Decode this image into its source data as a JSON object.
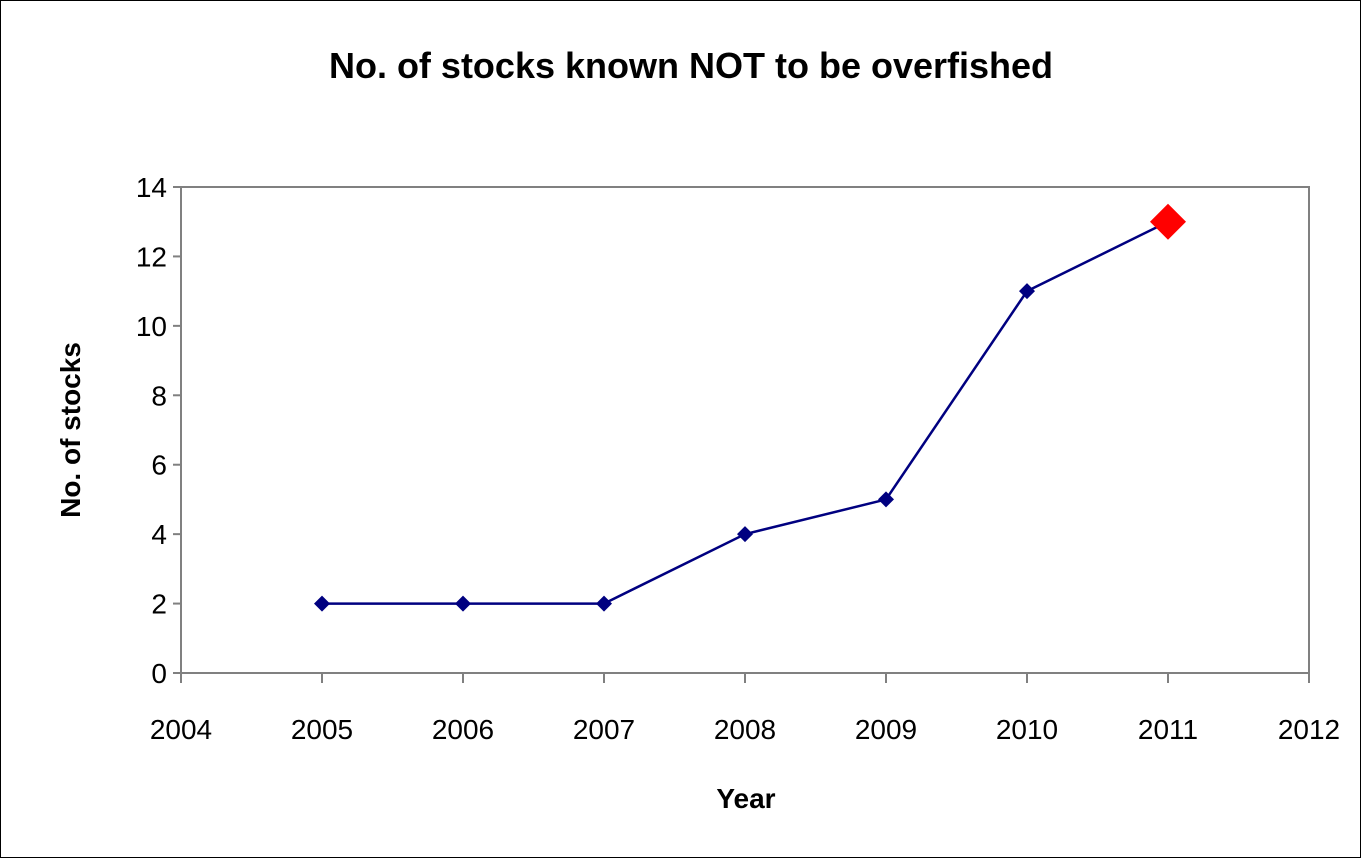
{
  "chart_data": {
    "type": "line",
    "title": "No. of stocks known NOT to be overfished",
    "xlabel": "Year",
    "ylabel": "No. of stocks",
    "xlim": [
      2004,
      2012
    ],
    "ylim": [
      0,
      14
    ],
    "x_ticks": [
      2004,
      2005,
      2006,
      2007,
      2008,
      2009,
      2010,
      2011,
      2012
    ],
    "y_ticks": [
      0,
      2,
      4,
      6,
      8,
      10,
      12,
      14
    ],
    "grid": false,
    "legend": "none",
    "series": [
      {
        "x": [
          2005,
          2006,
          2007,
          2008,
          2009,
          2010,
          2011
        ],
        "y": [
          2,
          2,
          2,
          4,
          5,
          11,
          13
        ],
        "color": "#000080"
      }
    ],
    "highlight_point": {
      "x": 2011,
      "y": 13,
      "color": "#ff0000"
    }
  }
}
